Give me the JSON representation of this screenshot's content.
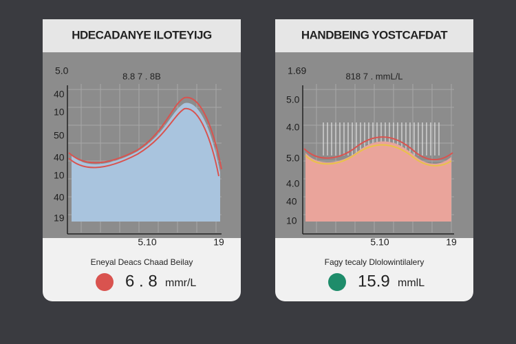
{
  "cards": [
    {
      "title": "HDECADANYE ILOTEYIJG",
      "corner": "5.0",
      "subtitle": "8.8 7 . 8B",
      "y_labels": [
        "40",
        "10",
        "50",
        "40",
        "10",
        "40",
        "19"
      ],
      "x_labels": [
        "5.10",
        "19"
      ],
      "footer": "Eneyal Deacs Chaad Beilay",
      "reading": "6 . 8",
      "unit": "mmr/L"
    },
    {
      "title": "HANDBEING YOSTCAFDAT",
      "corner": "1.69",
      "subtitle": "818 7 . mmL/L",
      "y_labels": [
        "5.0",
        "4.0",
        "5.0",
        "4.0",
        "40",
        "10"
      ],
      "x_labels": [
        "5.10",
        "19"
      ],
      "footer": "Fagy tecaly Dlolowintilalery",
      "reading": "15.9",
      "unit": "mmlL"
    }
  ]
}
